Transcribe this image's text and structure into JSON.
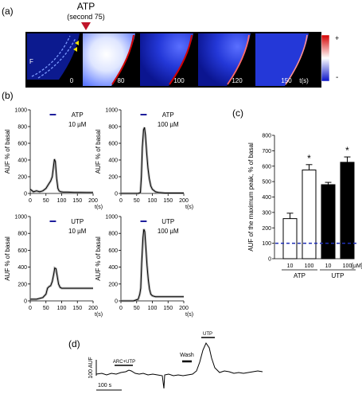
{
  "panel_labels": {
    "a": "(a)",
    "b": "(b)",
    "c": "(c)",
    "d": "(d)"
  },
  "panel_a": {
    "stimulus": "ATP",
    "stimulus_note": "(second 75)",
    "region_label": "F",
    "frame_times": [
      "0",
      "80",
      "100",
      "120",
      "150"
    ],
    "time_unit": "t(s)",
    "colorbar_max": "+",
    "colorbar_min": "-"
  },
  "panel_b": {
    "y_label": "AUF % of basal",
    "x_unit": "t(s)",
    "colors": {
      "trace": "#000000",
      "band": "#9a9a9a",
      "bar": "#1f1f9c"
    }
  },
  "panel_c": {
    "y_unit_label": "[µM]",
    "colors": {
      "atp": "#ffffff",
      "utp": "#000000",
      "baseline": "#1f2fb5"
    }
  },
  "panel_d": {
    "arc_label": "ARC+UTP",
    "wash_label": "Wash",
    "utp_label": "UTP",
    "y_scale": "100  AUF",
    "x_scale": "100 s"
  },
  "chart_data": [
    {
      "type": "line",
      "id": "b-atp-10",
      "title": "ATP",
      "subtitle": "10 µM",
      "xlabel": "t(s)",
      "ylabel": "AUF % of basal",
      "xlim": [
        0,
        200
      ],
      "ylim": [
        0,
        1000
      ],
      "x_ticks": [
        0,
        50,
        100,
        150,
        200
      ],
      "y_ticks": [
        0,
        200,
        400,
        600,
        800,
        1000
      ],
      "x": [
        0,
        10,
        20,
        30,
        40,
        50,
        60,
        65,
        70,
        74,
        77,
        80,
        84,
        88,
        92,
        97,
        105,
        120,
        140,
        160,
        180,
        200
      ],
      "y": [
        50,
        20,
        30,
        20,
        30,
        60,
        120,
        150,
        200,
        320,
        410,
        380,
        180,
        60,
        30,
        20,
        15,
        15,
        12,
        12,
        10,
        10
      ]
    },
    {
      "type": "line",
      "id": "b-atp-100",
      "title": "ATP",
      "subtitle": "100 µM",
      "xlabel": "t(s)",
      "ylabel": "AUF % of basal",
      "xlim": [
        0,
        200
      ],
      "ylim": [
        0,
        1000
      ],
      "x_ticks": [
        0,
        50,
        100,
        150,
        200
      ],
      "y_ticks": [
        0,
        200,
        400,
        600,
        800,
        1000
      ],
      "x": [
        0,
        20,
        40,
        55,
        62,
        65,
        68,
        72,
        75,
        78,
        82,
        86,
        90,
        95,
        100,
        110,
        120,
        140,
        160,
        180,
        200
      ],
      "y": [
        0,
        0,
        0,
        0,
        10,
        200,
        550,
        760,
        790,
        700,
        480,
        300,
        180,
        90,
        50,
        20,
        10,
        5,
        5,
        5,
        5
      ]
    },
    {
      "type": "line",
      "id": "b-utp-10",
      "title": "UTP",
      "subtitle": "10 µM",
      "xlabel": "t(s)",
      "ylabel": "AUF % of basal",
      "xlim": [
        0,
        200
      ],
      "ylim": [
        0,
        1000
      ],
      "x_ticks": [
        0,
        50,
        100,
        150,
        200
      ],
      "y_ticks": [
        0,
        200,
        400,
        600,
        800,
        1000
      ],
      "x": [
        0,
        20,
        40,
        50,
        55,
        60,
        65,
        70,
        75,
        78,
        82,
        86,
        90,
        95,
        100,
        110,
        120,
        140,
        160,
        180,
        200
      ],
      "y": [
        20,
        20,
        40,
        80,
        150,
        170,
        180,
        230,
        320,
        390,
        380,
        290,
        200,
        160,
        150,
        150,
        150,
        150,
        150,
        150,
        150
      ]
    },
    {
      "type": "line",
      "id": "b-utp-100",
      "title": "UTP",
      "subtitle": "100 µM",
      "xlabel": "t(s)",
      "ylabel": "AUF % of basal",
      "xlim": [
        0,
        200
      ],
      "ylim": [
        0,
        1000
      ],
      "x_ticks": [
        0,
        50,
        100,
        150,
        200
      ],
      "y_ticks": [
        0,
        200,
        400,
        600,
        800,
        1000
      ],
      "x": [
        0,
        20,
        40,
        55,
        60,
        63,
        66,
        70,
        73,
        76,
        79,
        83,
        87,
        91,
        95,
        100,
        110,
        120,
        140,
        160,
        180,
        200
      ],
      "y": [
        0,
        0,
        0,
        20,
        80,
        150,
        450,
        750,
        850,
        820,
        650,
        420,
        250,
        140,
        80,
        60,
        50,
        50,
        50,
        50,
        50,
        50
      ]
    },
    {
      "type": "bar",
      "id": "c-max-peak",
      "ylabel": "AUF of the maximum peak, % of basal",
      "ylim": [
        0,
        800
      ],
      "y_ticks": [
        0,
        100,
        200,
        300,
        400,
        500,
        600,
        700,
        800
      ],
      "categories": [
        "10",
        "100",
        "10",
        "100"
      ],
      "groups": [
        "ATP",
        "ATP",
        "UTP",
        "UTP"
      ],
      "values": [
        260,
        575,
        480,
        625
      ],
      "errors": [
        35,
        35,
        15,
        35
      ],
      "significance": [
        "",
        "*",
        "",
        "*"
      ],
      "baseline": 100
    }
  ]
}
